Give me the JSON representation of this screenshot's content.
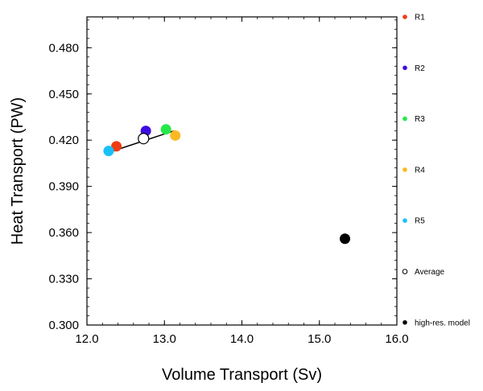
{
  "chart_data": {
    "type": "scatter",
    "title": "",
    "xlabel": "Volume Transport (Sv)",
    "ylabel": "Heat Transport (PW)",
    "xlim": [
      12.0,
      16.0
    ],
    "ylim": [
      0.3,
      0.5
    ],
    "x_ticks": [
      "12.0",
      "13.0",
      "14.0",
      "15.0",
      "16.0"
    ],
    "x_tick_values": [
      12.0,
      13.0,
      14.0,
      15.0,
      16.0
    ],
    "y_ticks": [
      "0.300",
      "0.330",
      "0.360",
      "0.390",
      "0.420",
      "0.450",
      "0.480"
    ],
    "y_tick_values": [
      0.3,
      0.33,
      0.36,
      0.39,
      0.42,
      0.45,
      0.48
    ],
    "grid": false,
    "legend_position": "right",
    "series": [
      {
        "name": "R1",
        "x": 12.38,
        "y": 0.416,
        "color": "#f03c14",
        "marker": "filled"
      },
      {
        "name": "R2",
        "x": 12.76,
        "y": 0.426,
        "color": "#3d0ce0",
        "marker": "filled"
      },
      {
        "name": "R3",
        "x": 13.02,
        "y": 0.427,
        "color": "#27e84a",
        "marker": "filled"
      },
      {
        "name": "R4",
        "x": 13.14,
        "y": 0.423,
        "color": "#fbb924",
        "marker": "filled"
      },
      {
        "name": "R5",
        "x": 12.28,
        "y": 0.413,
        "color": "#18c1f8",
        "marker": "filled"
      },
      {
        "name": "Average",
        "x": 12.73,
        "y": 0.421,
        "color": "#000000",
        "marker": "open"
      },
      {
        "name": "high-res. model",
        "x": 15.33,
        "y": 0.356,
        "color": "#000000",
        "marker": "filled"
      }
    ],
    "fit_line": {
      "x": [
        12.28,
        13.12
      ],
      "y": [
        0.412,
        0.426
      ],
      "color": "#000000"
    }
  }
}
